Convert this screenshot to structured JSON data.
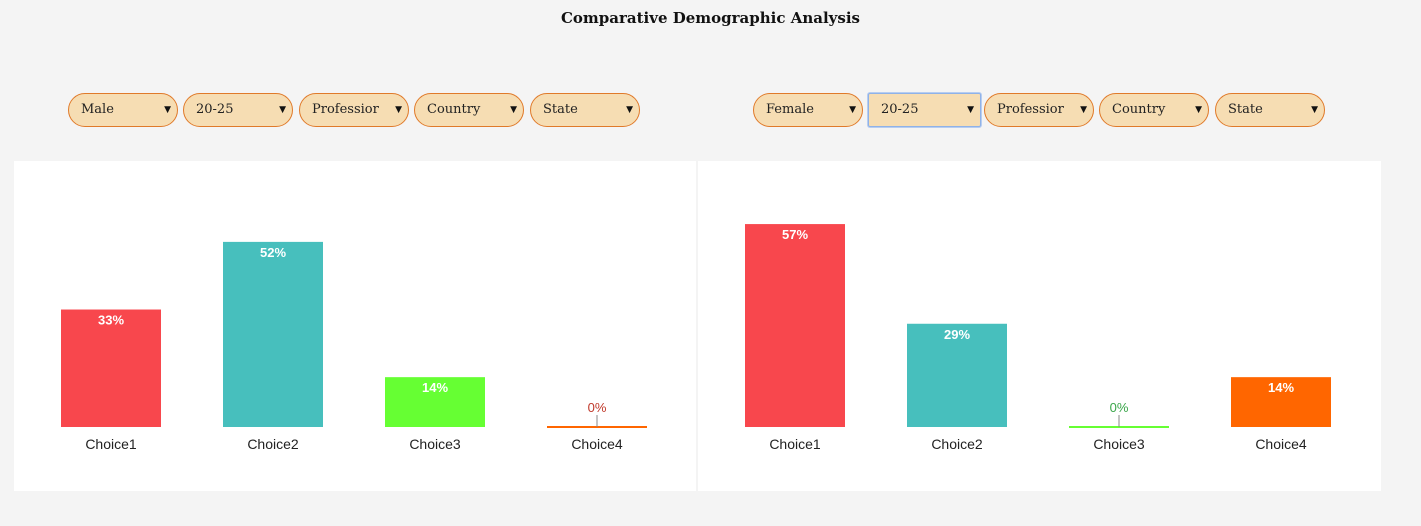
{
  "page_title": "Comparative Demographic Analysis",
  "filters_left": [
    "Male",
    "20-25",
    "Professior",
    "Country",
    "State"
  ],
  "filters_right": [
    "Female",
    "20-25",
    "Professior",
    "Country",
    "State"
  ],
  "colors": {
    "choice1": "#f8474d",
    "choice2": "#47bfbd",
    "choice3": "#66ff33",
    "choice4": "#ff6600"
  },
  "chart_data": [
    {
      "type": "bar",
      "categories": [
        "Choice1",
        "Choice2",
        "Choice3",
        "Choice4"
      ],
      "values": [
        33,
        52,
        14,
        0
      ],
      "labels": [
        "33%",
        "52%",
        "14%",
        "0%"
      ],
      "value_unit": "%"
    },
    {
      "type": "bar",
      "categories": [
        "Choice1",
        "Choice2",
        "Choice3",
        "Choice4"
      ],
      "values": [
        57,
        29,
        0,
        14
      ],
      "labels": [
        "57%",
        "29%",
        "0%",
        "14%"
      ],
      "value_unit": "%"
    }
  ]
}
